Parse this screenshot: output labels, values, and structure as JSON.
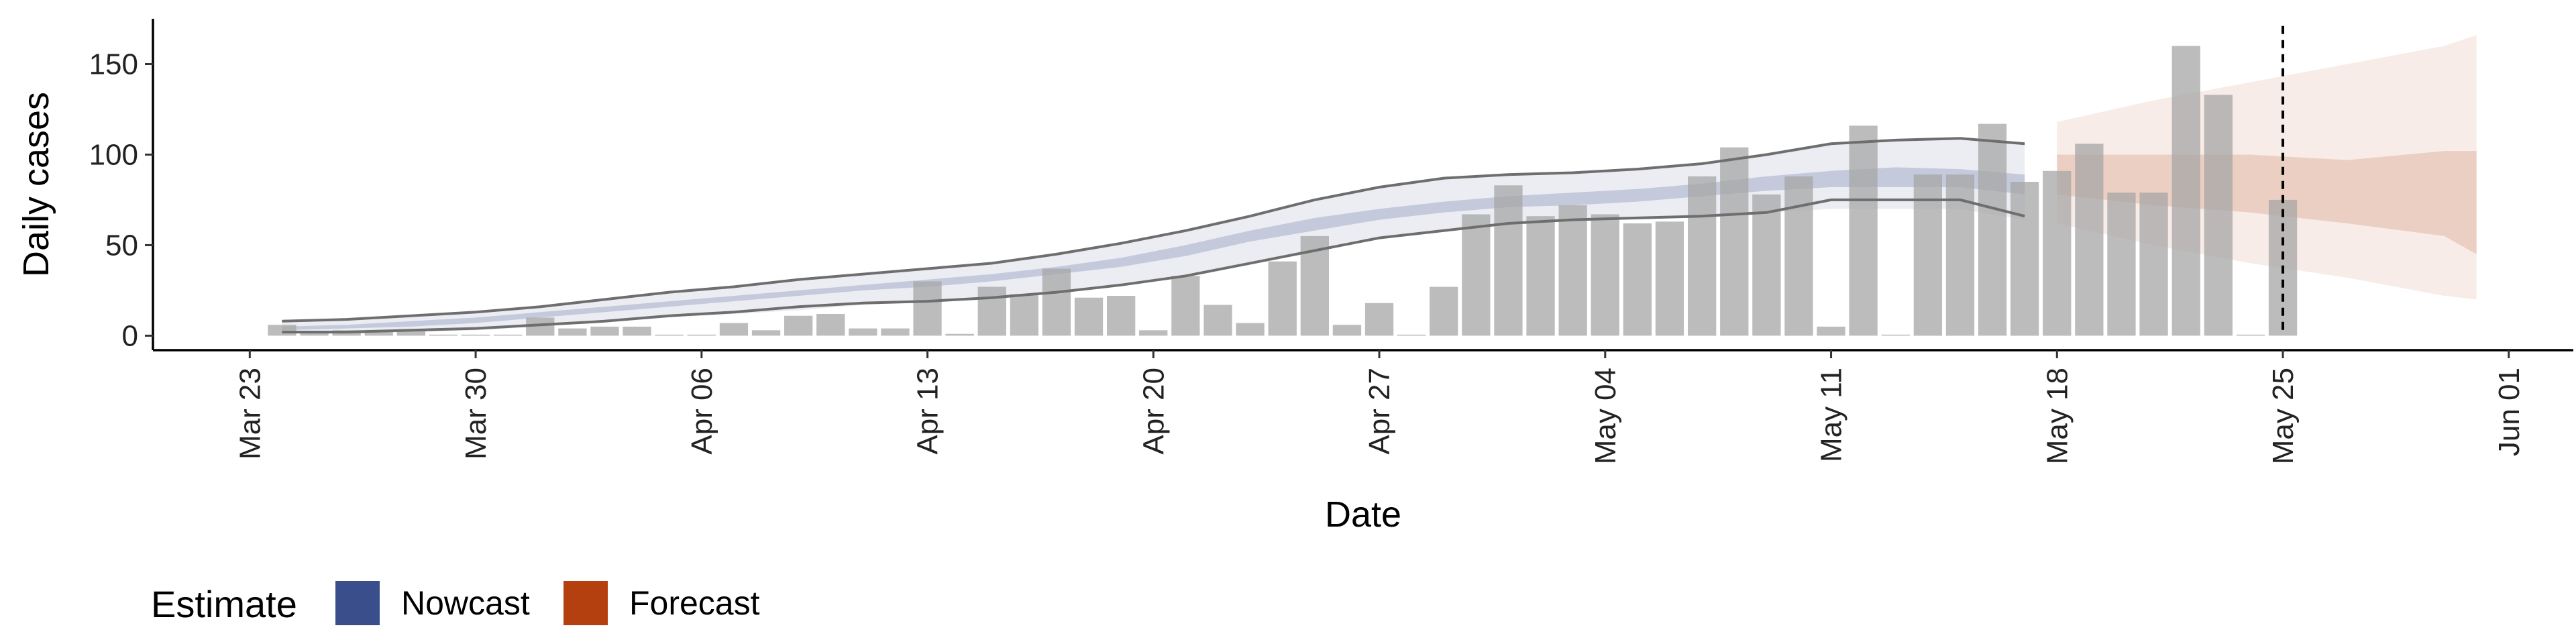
{
  "chart_data": {
    "type": "bar",
    "xlabel": "Date",
    "ylabel": "Daily cases",
    "x_type": "date",
    "xlim": [
      "2020-03-20",
      "2020-06-03"
    ],
    "ylim": [
      -8,
      175
    ],
    "x_ticks": [
      {
        "date": "2020-03-23",
        "label": "Mar 23"
      },
      {
        "date": "2020-03-30",
        "label": "Mar 30"
      },
      {
        "date": "2020-04-06",
        "label": "Apr 06"
      },
      {
        "date": "2020-04-13",
        "label": "Apr 13"
      },
      {
        "date": "2020-04-20",
        "label": "Apr 20"
      },
      {
        "date": "2020-04-27",
        "label": "Apr 27"
      },
      {
        "date": "2020-05-04",
        "label": "May 04"
      },
      {
        "date": "2020-05-11",
        "label": "May 11"
      },
      {
        "date": "2020-05-18",
        "label": "May 18"
      },
      {
        "date": "2020-05-25",
        "label": "May 25"
      },
      {
        "date": "2020-06-01",
        "label": "Jun 01"
      }
    ],
    "y_ticks": [
      0,
      50,
      100,
      150
    ],
    "grid": false,
    "reported_cases": {
      "color": "#a6a6a6",
      "dates": [
        "2020-03-24",
        "2020-03-25",
        "2020-03-26",
        "2020-03-27",
        "2020-03-28",
        "2020-03-29",
        "2020-03-30",
        "2020-03-31",
        "2020-04-01",
        "2020-04-02",
        "2020-04-03",
        "2020-04-04",
        "2020-04-05",
        "2020-04-06",
        "2020-04-07",
        "2020-04-08",
        "2020-04-09",
        "2020-04-10",
        "2020-04-11",
        "2020-04-12",
        "2020-04-13",
        "2020-04-14",
        "2020-04-15",
        "2020-04-16",
        "2020-04-17",
        "2020-04-18",
        "2020-04-19",
        "2020-04-20",
        "2020-04-21",
        "2020-04-22",
        "2020-04-23",
        "2020-04-24",
        "2020-04-25",
        "2020-04-26",
        "2020-04-27",
        "2020-04-28",
        "2020-04-29",
        "2020-04-30",
        "2020-05-01",
        "2020-05-02",
        "2020-05-03",
        "2020-05-04",
        "2020-05-05",
        "2020-05-06",
        "2020-05-07",
        "2020-05-08",
        "2020-05-09",
        "2020-05-10",
        "2020-05-11",
        "2020-05-12",
        "2020-05-13",
        "2020-05-14",
        "2020-05-15",
        "2020-05-16",
        "2020-05-17",
        "2020-05-18",
        "2020-05-19",
        "2020-05-20",
        "2020-05-21",
        "2020-05-22",
        "2020-05-23",
        "2020-05-24",
        "2020-05-25"
      ],
      "values": [
        6,
        2,
        3,
        3,
        3,
        0,
        0,
        0,
        10,
        4,
        5,
        5,
        0,
        0,
        7,
        3,
        11,
        12,
        4,
        4,
        30,
        1,
        27,
        23,
        37,
        21,
        22,
        3,
        33,
        17,
        7,
        41,
        55,
        6,
        18,
        0,
        27,
        67,
        83,
        66,
        72,
        67,
        62,
        63,
        88,
        104,
        78,
        88,
        5,
        116,
        0,
        89,
        89,
        117,
        85,
        91,
        106,
        79,
        79,
        160,
        133,
        0,
        75
      ]
    },
    "nowcast": {
      "name": "Nowcast",
      "color": "#3b4e8c",
      "dates": [
        "2020-03-24",
        "2020-03-26",
        "2020-03-28",
        "2020-03-30",
        "2020-04-01",
        "2020-04-03",
        "2020-04-05",
        "2020-04-07",
        "2020-04-09",
        "2020-04-11",
        "2020-04-13",
        "2020-04-15",
        "2020-04-17",
        "2020-04-19",
        "2020-04-21",
        "2020-04-23",
        "2020-04-25",
        "2020-04-27",
        "2020-04-29",
        "2020-05-01",
        "2020-05-03",
        "2020-05-05",
        "2020-05-07",
        "2020-05-09",
        "2020-05-11",
        "2020-05-13",
        "2020-05-15",
        "2020-05-17"
      ],
      "lower90": [
        1,
        1,
        2,
        3,
        5,
        8,
        10,
        12,
        14,
        17,
        19,
        21,
        24,
        28,
        33,
        40,
        47,
        54,
        58,
        62,
        64,
        65,
        66,
        68,
        70,
        70,
        70,
        64
      ],
      "lower50": [
        3,
        4,
        5,
        7,
        10,
        13,
        16,
        19,
        22,
        25,
        27,
        30,
        34,
        38,
        44,
        52,
        58,
        64,
        68,
        71,
        72,
        74,
        77,
        80,
        82,
        82,
        82,
        78
      ],
      "upper50": [
        5,
        6,
        8,
        10,
        13,
        16,
        19,
        22,
        25,
        28,
        31,
        34,
        38,
        43,
        50,
        58,
        65,
        70,
        74,
        77,
        79,
        81,
        84,
        88,
        91,
        93,
        92,
        89
      ],
      "upper90": [
        8,
        9,
        11,
        13,
        16,
        20,
        24,
        27,
        31,
        34,
        37,
        40,
        45,
        51,
        58,
        66,
        75,
        82,
        87,
        89,
        90,
        92,
        95,
        100,
        106,
        108,
        109,
        106
      ]
    },
    "nowcast_bounds": {
      "color": "#6e6e6e",
      "dates": [
        "2020-03-24",
        "2020-03-26",
        "2020-03-28",
        "2020-03-30",
        "2020-04-01",
        "2020-04-03",
        "2020-04-05",
        "2020-04-07",
        "2020-04-09",
        "2020-04-11",
        "2020-04-13",
        "2020-04-15",
        "2020-04-17",
        "2020-04-19",
        "2020-04-21",
        "2020-04-23",
        "2020-04-25",
        "2020-04-27",
        "2020-04-29",
        "2020-05-01",
        "2020-05-03",
        "2020-05-05",
        "2020-05-07",
        "2020-05-09",
        "2020-05-11",
        "2020-05-13",
        "2020-05-15",
        "2020-05-17"
      ],
      "lower": [
        2,
        2,
        3,
        4,
        6,
        8,
        11,
        13,
        16,
        18,
        19,
        21,
        24,
        28,
        33,
        40,
        47,
        54,
        58,
        62,
        64,
        65,
        66,
        68,
        75,
        75,
        75,
        66
      ],
      "upper": [
        8,
        9,
        11,
        13,
        16,
        20,
        24,
        27,
        31,
        34,
        37,
        40,
        45,
        51,
        58,
        66,
        75,
        82,
        87,
        89,
        90,
        92,
        95,
        100,
        106,
        108,
        109,
        106
      ]
    },
    "forecast": {
      "name": "Forecast",
      "color": "#b5400f",
      "dates": [
        "2020-05-18",
        "2020-05-21",
        "2020-05-24",
        "2020-05-27",
        "2020-05-30",
        "2020-05-31"
      ],
      "lower90": [
        62,
        50,
        40,
        32,
        22,
        20
      ],
      "lower50": [
        78,
        72,
        68,
        62,
        55,
        45
      ],
      "upper50": [
        100,
        100,
        100,
        97,
        102,
        102
      ],
      "upper90": [
        118,
        130,
        140,
        150,
        160,
        166
      ]
    },
    "vline": {
      "date": "2020-05-25",
      "style": "dashed"
    },
    "legend": {
      "title": "Estimate",
      "position": "bottom-left",
      "entries": [
        {
          "label": "Nowcast",
          "color": "#3b4e8c"
        },
        {
          "label": "Forecast",
          "color": "#b5400f"
        }
      ]
    }
  }
}
